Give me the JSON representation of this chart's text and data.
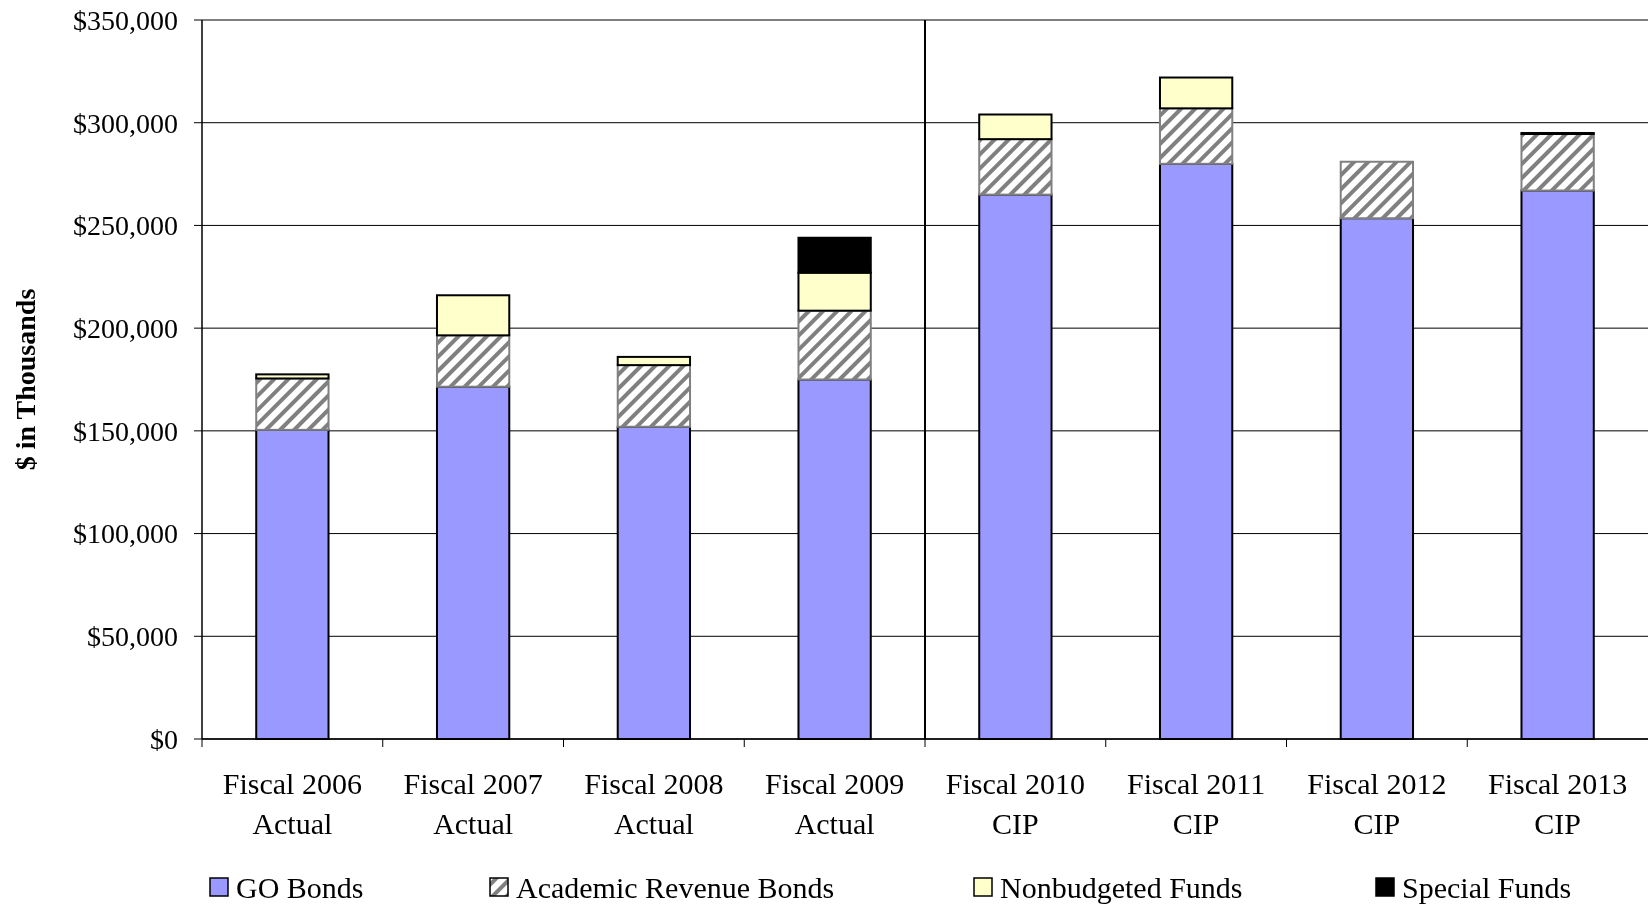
{
  "chart_data": {
    "type": "bar",
    "stacked": true,
    "ylabel": "$ in Thousands",
    "categories": [
      "Fiscal 2006\nActual",
      "Fiscal 2007\nActual",
      "Fiscal 2008\nActual",
      "Fiscal 2009\nActual",
      "Fiscal 2010\nCIP",
      "Fiscal 2011\nCIP",
      "Fiscal 2012\nCIP",
      "Fiscal 2013\nCIP"
    ],
    "series": [
      {
        "name": "GO Bonds",
        "color": "#9999ff",
        "values": [
          150500,
          171500,
          152000,
          175000,
          265000,
          280000,
          253500,
          267000
        ]
      },
      {
        "name": "Academic Revenue Bonds",
        "color": "#808080",
        "values": [
          25000,
          25000,
          30000,
          33500,
          27000,
          27000,
          27500,
          27500
        ]
      },
      {
        "name": "Nonbudgeted Funds",
        "color": "#ffffcc",
        "values": [
          2000,
          19500,
          4000,
          18500,
          12000,
          15000,
          0,
          500
        ]
      },
      {
        "name": "Special Funds",
        "color": "#000000",
        "values": [
          0,
          0,
          0,
          17000,
          0,
          0,
          0,
          0
        ]
      }
    ],
    "ylim": [
      0,
      350000
    ],
    "yticks": [
      {
        "value": 0,
        "label": "$0"
      },
      {
        "value": 50000,
        "label": "$50,000"
      },
      {
        "value": 100000,
        "label": "$100,000"
      },
      {
        "value": 150000,
        "label": "$150,000"
      },
      {
        "value": 200000,
        "label": "$200,000"
      },
      {
        "value": 250000,
        "label": "$250,000"
      },
      {
        "value": 300000,
        "label": "$300,000"
      },
      {
        "value": 350000,
        "label": "$350,000"
      }
    ],
    "grid": "y",
    "legend": "bottom",
    "ref_lines": [
      {
        "axis": "x",
        "value": "Fiscal 2010\nCIP",
        "color": "#000000"
      }
    ]
  }
}
